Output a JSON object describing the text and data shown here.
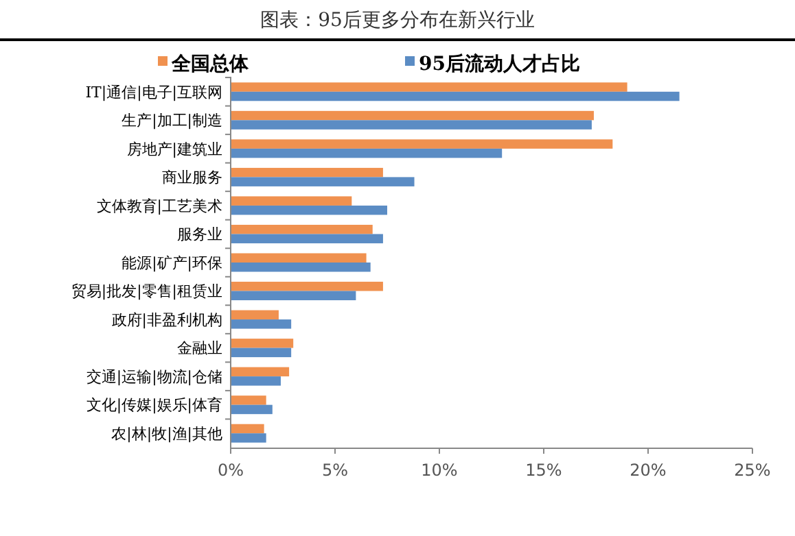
{
  "chart_data": {
    "type": "bar",
    "orientation": "horizontal",
    "title": "图表：95后更多分布在新兴行业",
    "categories": [
      "IT|通信|电子|互联网",
      "生产|加工|制造",
      "房地产|建筑业",
      "商业服务",
      "文体教育|工艺美术",
      "服务业",
      "能源|矿产|环保",
      "贸易|批发|零售|租赁业",
      "政府|非盈利机构",
      "金融业",
      "交通|运输|物流|仓储",
      "文化|传媒|娱乐|体育",
      "农|林|牧|渔|其他"
    ],
    "series": [
      {
        "name": "全国总体",
        "color": "#f0914f",
        "values": [
          19.0,
          17.4,
          18.3,
          7.3,
          5.8,
          6.8,
          6.5,
          7.3,
          2.3,
          3.0,
          2.8,
          1.7,
          1.6
        ]
      },
      {
        "name": "95后流动人才占比",
        "color": "#5b8cc4",
        "values": [
          21.5,
          17.3,
          13.0,
          8.8,
          7.5,
          7.3,
          6.7,
          6.0,
          2.9,
          2.9,
          2.4,
          2.0,
          1.7
        ]
      }
    ],
    "xlim": [
      0,
      25
    ],
    "xticks": [
      {
        "value": 0,
        "label": "0%"
      },
      {
        "value": 5,
        "label": "5%"
      },
      {
        "value": 10,
        "label": "10%"
      },
      {
        "value": 15,
        "label": "15%"
      },
      {
        "value": 20,
        "label": "20%"
      },
      {
        "value": 25,
        "label": "25%"
      }
    ],
    "legend": "top",
    "grid": false
  }
}
